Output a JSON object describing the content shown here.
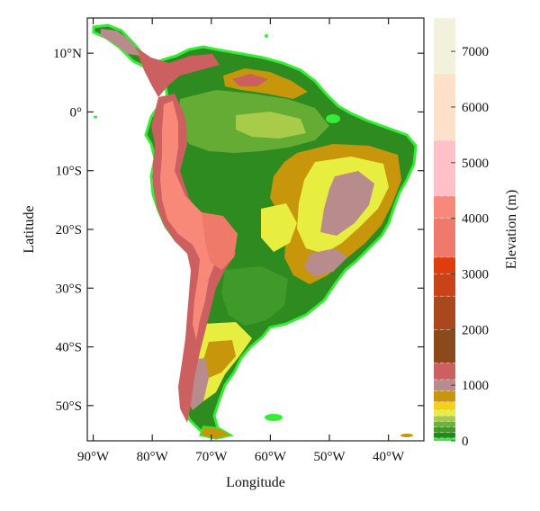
{
  "axes": {
    "xlabel": "Longitude",
    "ylabel": "Latitude",
    "xlim": [
      -91,
      -34
    ],
    "ylim": [
      -56,
      16
    ],
    "x_ticks": [
      {
        "value": -90,
        "label": "90°W"
      },
      {
        "value": -80,
        "label": "80°W"
      },
      {
        "value": -70,
        "label": "70°W"
      },
      {
        "value": -60,
        "label": "60°W"
      },
      {
        "value": -50,
        "label": "50°W"
      },
      {
        "value": -40,
        "label": "40°W"
      }
    ],
    "y_ticks": [
      {
        "value": 10,
        "label": "10°N"
      },
      {
        "value": 0,
        "label": "0°"
      },
      {
        "value": -10,
        "label": "10°S"
      },
      {
        "value": -20,
        "label": "20°S"
      },
      {
        "value": -30,
        "label": "30°S"
      },
      {
        "value": -40,
        "label": "40°S"
      },
      {
        "value": -50,
        "label": "50°S"
      }
    ]
  },
  "colorbar": {
    "label": "Elevation (m)",
    "range": [
      0,
      7600
    ],
    "ticks": [
      {
        "value": 0,
        "label": "0"
      },
      {
        "value": 1000,
        "label": "1000"
      },
      {
        "value": 2000,
        "label": "2000"
      },
      {
        "value": 3000,
        "label": "3000"
      },
      {
        "value": 4000,
        "label": "4000"
      },
      {
        "value": 5000,
        "label": "5000"
      },
      {
        "value": 6000,
        "label": "6000"
      },
      {
        "value": 7000,
        "label": "7000"
      }
    ],
    "bands": [
      {
        "from": 0,
        "to": 50,
        "color": "#33ee33"
      },
      {
        "from": 50,
        "to": 150,
        "color": "#1f8a1f"
      },
      {
        "from": 150,
        "to": 250,
        "color": "#3f9a2a"
      },
      {
        "from": 250,
        "to": 350,
        "color": "#6fb238"
      },
      {
        "from": 350,
        "to": 450,
        "color": "#a8cc4a"
      },
      {
        "from": 450,
        "to": 550,
        "color": "#e8ee40"
      },
      {
        "from": 550,
        "to": 700,
        "color": "#f2d21a"
      },
      {
        "from": 700,
        "to": 900,
        "color": "#c8960a"
      },
      {
        "from": 900,
        "to": 1100,
        "color": "#b88c8c"
      },
      {
        "from": 1100,
        "to": 1400,
        "color": "#cc6060"
      },
      {
        "from": 1400,
        "to": 2000,
        "color": "#8a4a1a"
      },
      {
        "from": 2000,
        "to": 2600,
        "color": "#a8481c"
      },
      {
        "from": 2600,
        "to": 3000,
        "color": "#c84418"
      },
      {
        "from": 3000,
        "to": 3300,
        "color": "#e03c0c"
      },
      {
        "from": 3300,
        "to": 4000,
        "color": "#f07a6a"
      },
      {
        "from": 4000,
        "to": 4400,
        "color": "#f88878"
      },
      {
        "from": 4400,
        "to": 5400,
        "color": "#ffc0c8"
      },
      {
        "from": 5400,
        "to": 6600,
        "color": "#ffe0c8"
      },
      {
        "from": 6600,
        "to": 7600,
        "color": "#f2f2dc"
      }
    ]
  },
  "map_colors": {
    "lowland": "#2e8b1f",
    "savanna": "#6fb238",
    "plain": "#a8cc4a",
    "upland": "#e8ee40",
    "plateau": "#c8960a",
    "highland": "#b88c8c",
    "mountain": "#cc6060",
    "peak": "#f88878",
    "coast": "#33ee33"
  }
}
